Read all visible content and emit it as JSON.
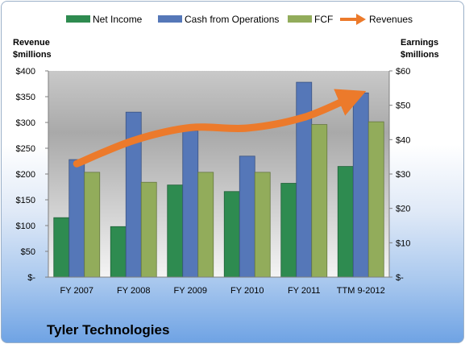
{
  "chart_data": {
    "type": "bar",
    "title": "Tyler Technologies",
    "categories": [
      "FY 2007",
      "FY 2008",
      "FY 2009",
      "FY 2010",
      "FY 2011",
      "TTM 9-2012"
    ],
    "series": [
      {
        "name": "Net Income",
        "axis": "right",
        "color": "#2e8b50",
        "values": [
          17.3,
          14.7,
          26.8,
          24.9,
          27.3,
          32.2
        ]
      },
      {
        "name": "Cash from Operations",
        "axis": "right",
        "color": "#5577b8",
        "values": [
          34.2,
          48.0,
          42.6,
          35.2,
          56.7,
          53.6
        ]
      },
      {
        "name": "FCF",
        "axis": "right",
        "color": "#92ac5b",
        "values": [
          30.5,
          27.6,
          30.5,
          30.5,
          44.4,
          45.2
        ]
      },
      {
        "name": "Revenues",
        "axis": "left",
        "type": "line",
        "color": "#ec7a2b",
        "values": [
          220,
          265,
          290,
          289,
          310,
          350
        ]
      }
    ],
    "left_axis": {
      "label_line1": "Revenue",
      "label_line2": "$millions",
      "ylim": [
        0,
        400
      ],
      "ticks": [
        "$-",
        "$50",
        "$100",
        "$150",
        "$200",
        "$250",
        "$300",
        "$350",
        "$400"
      ]
    },
    "right_axis": {
      "label_line1": "Earnings",
      "label_line2": "$millions",
      "ylim": [
        0,
        60
      ],
      "ticks": [
        "$-",
        "$10",
        "$20",
        "$30",
        "$40",
        "$50",
        "$60"
      ]
    },
    "legend_position": "top",
    "grid": false
  }
}
